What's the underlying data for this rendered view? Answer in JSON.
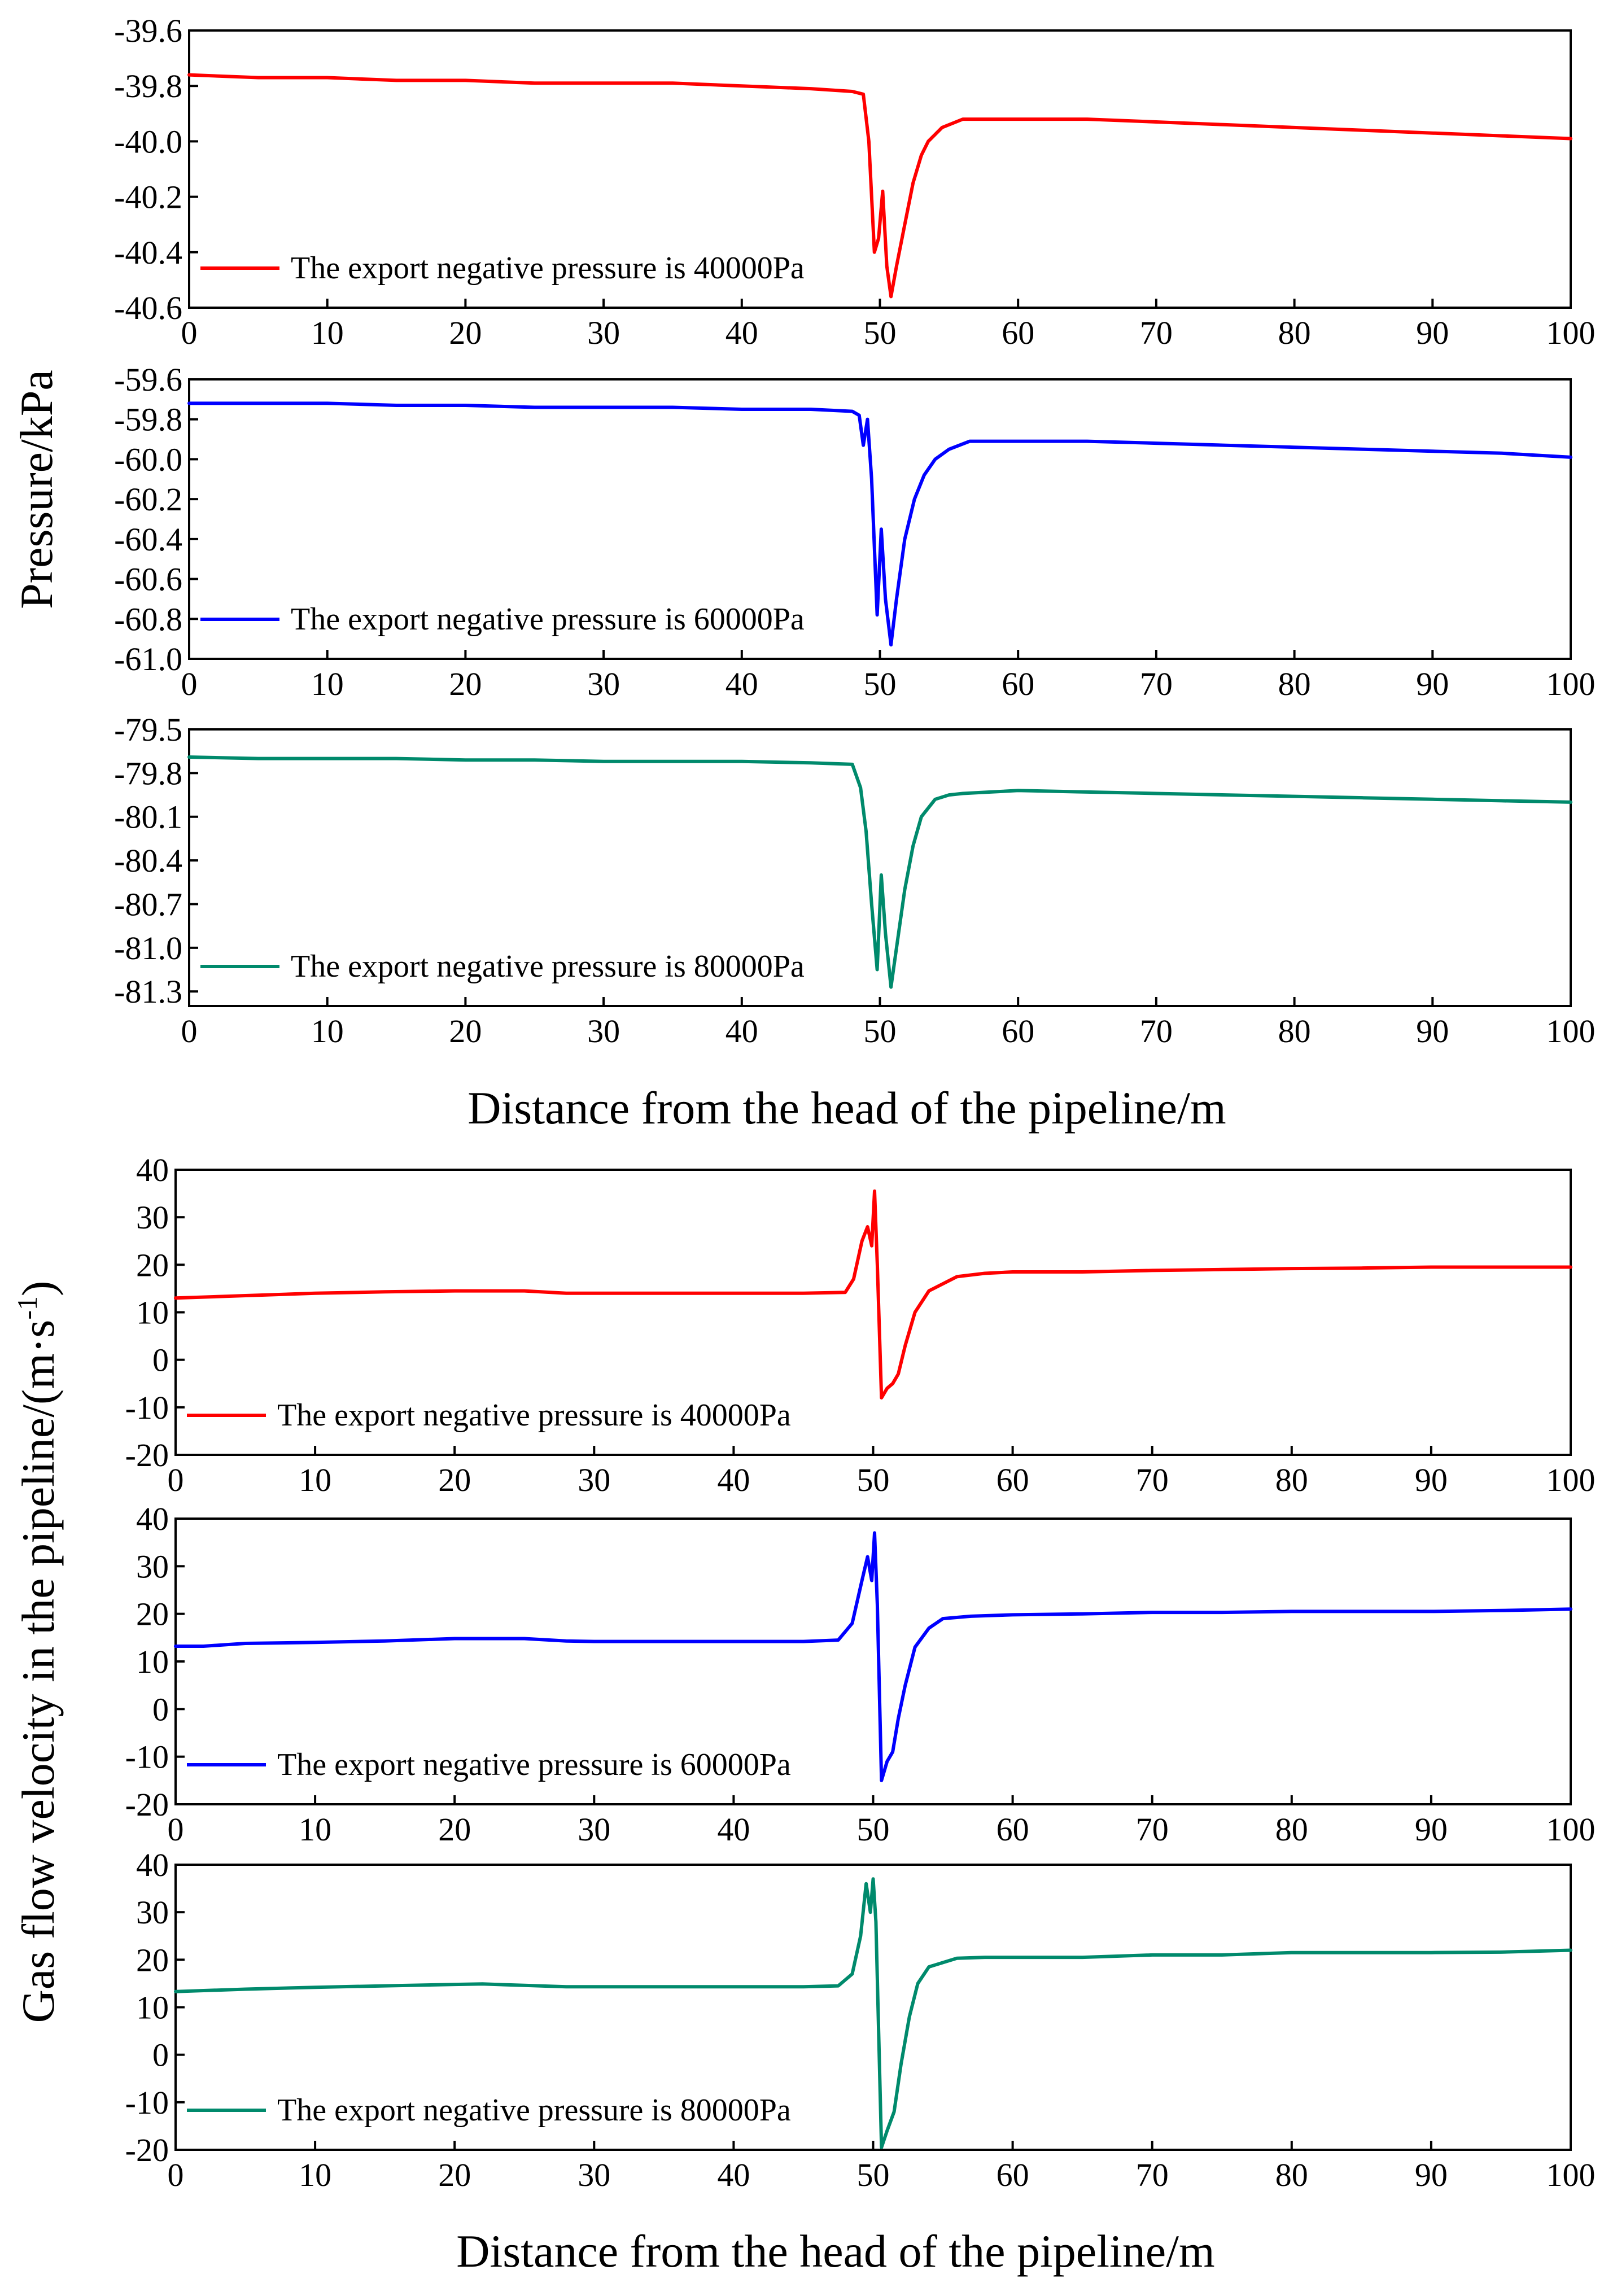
{
  "colors": {
    "p40000": "#ff0000",
    "p60000": "#0000ff",
    "p80000": "#008a6c"
  },
  "titles": {
    "pressure_y": "Pressure/kPa",
    "pressure_x": "Distance from the head of the pipeline/m",
    "velocity_y": "Gas flow velocity in the pipeline/(m·s",
    "velocity_y_sup": "-1",
    "velocity_y_end": ")",
    "velocity_x": "Distance from the head of the pipeline/m"
  },
  "chart_data": [
    {
      "type": "line",
      "group": "pressure",
      "name": "pressure-40000",
      "title": "",
      "xlabel": "Distance from the head of the pipeline/m",
      "ylabel": "Pressure/kPa",
      "xlim": [
        0,
        100
      ],
      "ylim": [
        -40.6,
        -39.6
      ],
      "xticks": [
        0,
        10,
        20,
        30,
        40,
        50,
        60,
        70,
        80,
        90,
        100
      ],
      "xtick_labels": [
        "0",
        "10",
        "20",
        "30",
        "40",
        "50",
        "60",
        "70",
        "80",
        "90",
        "100"
      ],
      "yticks": [
        -39.6,
        -39.8,
        -40.0,
        -40.2,
        -40.4,
        -40.6
      ],
      "ytick_labels": [
        "-39.6",
        "-39.8",
        "-40.0",
        "-40.2",
        "-40.4",
        "-40.6"
      ],
      "legend": "lower-left",
      "series": [
        {
          "name": "The export negative pressure is 40000Pa",
          "color": "#ff0000",
          "x": [
            0,
            5,
            10,
            15,
            20,
            25,
            30,
            35,
            40,
            45,
            48,
            48.8,
            49.2,
            49.6,
            49.9,
            50.2,
            50.5,
            50.8,
            51.2,
            51.8,
            52.4,
            53,
            53.5,
            54.5,
            56,
            60,
            65,
            70,
            75,
            80,
            85,
            90,
            95,
            100
          ],
          "y": [
            -39.76,
            -39.77,
            -39.77,
            -39.78,
            -39.78,
            -39.79,
            -39.79,
            -39.79,
            -39.8,
            -39.81,
            -39.82,
            -39.83,
            -40.0,
            -40.4,
            -40.35,
            -40.18,
            -40.45,
            -40.56,
            -40.45,
            -40.3,
            -40.15,
            -40.05,
            -40.0,
            -39.95,
            -39.92,
            -39.92,
            -39.92,
            -39.93,
            -39.94,
            -39.95,
            -39.96,
            -39.97,
            -39.98,
            -39.99
          ]
        }
      ]
    },
    {
      "type": "line",
      "group": "pressure",
      "name": "pressure-60000",
      "title": "",
      "xlabel": "Distance from the head of the pipeline/m",
      "ylabel": "Pressure/kPa",
      "xlim": [
        0,
        100
      ],
      "ylim": [
        -61.0,
        -59.6
      ],
      "xticks": [
        0,
        10,
        20,
        30,
        40,
        50,
        60,
        70,
        80,
        90,
        100
      ],
      "xtick_labels": [
        "0",
        "10",
        "20",
        "30",
        "40",
        "50",
        "60",
        "70",
        "80",
        "90",
        "100"
      ],
      "yticks": [
        -59.6,
        -59.8,
        -60.0,
        -60.2,
        -60.4,
        -60.6,
        -60.8,
        -61.0
      ],
      "ytick_labels": [
        "-59.6",
        "-59.8",
        "-60.0",
        "-60.2",
        "-60.4",
        "-60.6",
        "-60.8",
        "-61.0"
      ],
      "legend": "lower-left",
      "series": [
        {
          "name": "The export negative pressure is 60000Pa",
          "color": "#0000ff",
          "x": [
            0,
            5,
            10,
            15,
            20,
            25,
            30,
            35,
            40,
            45,
            48,
            48.5,
            48.8,
            49.1,
            49.4,
            49.8,
            50.1,
            50.4,
            50.8,
            51.2,
            51.8,
            52.5,
            53.2,
            54,
            55,
            56.5,
            60,
            65,
            70,
            75,
            80,
            85,
            90,
            95,
            100
          ],
          "y": [
            -59.72,
            -59.72,
            -59.72,
            -59.73,
            -59.73,
            -59.74,
            -59.74,
            -59.74,
            -59.75,
            -59.75,
            -59.76,
            -59.78,
            -59.93,
            -59.8,
            -60.1,
            -60.78,
            -60.35,
            -60.7,
            -60.93,
            -60.7,
            -60.4,
            -60.2,
            -60.08,
            -60.0,
            -59.95,
            -59.91,
            -59.91,
            -59.91,
            -59.92,
            -59.93,
            -59.94,
            -59.95,
            -59.96,
            -59.97,
            -59.99
          ]
        }
      ]
    },
    {
      "type": "line",
      "group": "pressure",
      "name": "pressure-80000",
      "title": "",
      "xlabel": "Distance from the head of the pipeline/m",
      "ylabel": "Pressure/kPa",
      "xlim": [
        0,
        100
      ],
      "ylim": [
        -81.4,
        -79.5
      ],
      "xticks": [
        0,
        10,
        20,
        30,
        40,
        50,
        60,
        70,
        80,
        90,
        100
      ],
      "xtick_labels": [
        "0",
        "10",
        "20",
        "30",
        "40",
        "50",
        "60",
        "70",
        "80",
        "90",
        "100"
      ],
      "yticks": [
        -79.5,
        -79.8,
        -80.1,
        -80.4,
        -80.7,
        -81.0,
        -81.3
      ],
      "ytick_labels": [
        "-79.5",
        "-79.8",
        "-80.1",
        "-80.4",
        "-80.7",
        "-81.0",
        "-81.3"
      ],
      "legend": "lower-left",
      "series": [
        {
          "name": "The export negative pressure is 80000Pa",
          "color": "#008a6c",
          "x": [
            0,
            5,
            10,
            15,
            20,
            25,
            30,
            35,
            40,
            45,
            48,
            48.6,
            49,
            49.4,
            49.8,
            50.1,
            50.4,
            50.8,
            51.2,
            51.8,
            52.4,
            53,
            54,
            55,
            56,
            58,
            60,
            65,
            70,
            75,
            80,
            85,
            90,
            95,
            100
          ],
          "y": [
            -79.69,
            -79.7,
            -79.7,
            -79.7,
            -79.71,
            -79.71,
            -79.72,
            -79.72,
            -79.72,
            -79.73,
            -79.74,
            -79.9,
            -80.2,
            -80.7,
            -81.15,
            -80.5,
            -80.9,
            -81.27,
            -81.0,
            -80.6,
            -80.3,
            -80.1,
            -79.98,
            -79.95,
            -79.94,
            -79.93,
            -79.92,
            -79.93,
            -79.94,
            -79.95,
            -79.96,
            -79.97,
            -79.98,
            -79.99,
            -80.0
          ]
        }
      ]
    },
    {
      "type": "line",
      "group": "velocity",
      "name": "velocity-40000",
      "title": "",
      "xlabel": "Distance from the head of the pipeline/m",
      "ylabel": "Gas flow velocity in the pipeline/(m·s-1)",
      "xlim": [
        0,
        100
      ],
      "ylim": [
        -20,
        40
      ],
      "xticks": [
        0,
        10,
        20,
        30,
        40,
        50,
        60,
        70,
        80,
        90,
        100
      ],
      "xtick_labels": [
        "0",
        "10",
        "20",
        "30",
        "40",
        "50",
        "60",
        "70",
        "80",
        "90",
        "100"
      ],
      "yticks": [
        40,
        30,
        20,
        10,
        0,
        -10,
        -20
      ],
      "ytick_labels": [
        "40",
        "30",
        "20",
        "10",
        "0",
        "-10",
        "-20"
      ],
      "legend": "lower-left",
      "series": [
        {
          "name": "The export negative pressure is 40000Pa",
          "color": "#ff0000",
          "x": [
            0,
            5,
            10,
            15,
            20,
            25,
            28,
            30,
            35,
            40,
            45,
            48,
            48.6,
            49.2,
            49.6,
            49.9,
            50.1,
            50.3,
            50.6,
            51,
            51.4,
            51.8,
            52.3,
            53,
            54,
            56,
            58,
            60,
            65,
            70,
            75,
            80,
            85,
            90,
            95,
            100
          ],
          "y": [
            13,
            13.5,
            14,
            14.3,
            14.5,
            14.5,
            14,
            14,
            14,
            14,
            14,
            14.2,
            17,
            25,
            28,
            24,
            35.5,
            20,
            -8,
            -6,
            -5,
            -3,
            3,
            10,
            14.5,
            17.5,
            18.2,
            18.5,
            18.5,
            18.8,
            19,
            19.2,
            19.3,
            19.5,
            19.5,
            19.5
          ]
        }
      ]
    },
    {
      "type": "line",
      "group": "velocity",
      "name": "velocity-60000",
      "title": "",
      "xlabel": "Distance from the head of the pipeline/m",
      "ylabel": "Gas flow velocity in the pipeline/(m·s-1)",
      "xlim": [
        0,
        100
      ],
      "ylim": [
        -20,
        40
      ],
      "xticks": [
        0,
        10,
        20,
        30,
        40,
        50,
        60,
        70,
        80,
        90,
        100
      ],
      "xtick_labels": [
        "0",
        "10",
        "20",
        "30",
        "40",
        "50",
        "60",
        "70",
        "80",
        "90",
        "100"
      ],
      "yticks": [
        40,
        30,
        20,
        10,
        0,
        -10,
        -20
      ],
      "ytick_labels": [
        "40",
        "30",
        "20",
        "10",
        "0",
        "-10",
        "-20"
      ],
      "legend": "lower-left",
      "series": [
        {
          "name": "The export negative pressure is 60000Pa",
          "color": "#0000ff",
          "x": [
            0,
            2,
            5,
            10,
            15,
            20,
            25,
            28,
            30,
            35,
            40,
            45,
            47.5,
            48.5,
            49.2,
            49.6,
            49.9,
            50.1,
            50.3,
            50.6,
            51,
            51.4,
            51.8,
            52.3,
            53,
            54,
            55,
            57,
            60,
            65,
            70,
            75,
            80,
            85,
            90,
            95,
            100
          ],
          "y": [
            13.2,
            13.2,
            13.8,
            14,
            14.3,
            14.8,
            14.8,
            14.3,
            14.2,
            14.2,
            14.2,
            14.2,
            14.5,
            18,
            27,
            32,
            27,
            37,
            22,
            -15,
            -11,
            -9,
            -2,
            5,
            13,
            17,
            19,
            19.5,
            19.8,
            20,
            20.3,
            20.3,
            20.5,
            20.5,
            20.5,
            20.7,
            21
          ]
        }
      ]
    },
    {
      "type": "line",
      "group": "velocity",
      "name": "velocity-80000",
      "title": "",
      "xlabel": "Distance from the head of the pipeline/m",
      "ylabel": "Gas flow velocity in the pipeline/(m·s-1)",
      "xlim": [
        0,
        100
      ],
      "ylim": [
        -20,
        40
      ],
      "xticks": [
        0,
        10,
        20,
        30,
        40,
        50,
        60,
        70,
        80,
        90,
        100
      ],
      "xtick_labels": [
        "0",
        "10",
        "20",
        "30",
        "40",
        "50",
        "60",
        "70",
        "80",
        "90",
        "100"
      ],
      "yticks": [
        40,
        30,
        20,
        10,
        0,
        -10,
        -20
      ],
      "ytick_labels": [
        "40",
        "30",
        "20",
        "10",
        "0",
        "-10",
        "-20"
      ],
      "legend": "lower-left",
      "series": [
        {
          "name": "The export negative pressure is 80000Pa",
          "color": "#008a6c",
          "x": [
            0,
            5,
            10,
            15,
            20,
            22,
            25,
            28,
            30,
            35,
            40,
            45,
            47.5,
            48.5,
            49.1,
            49.5,
            49.8,
            50,
            50.2,
            50.6,
            51,
            51.5,
            52,
            52.6,
            53.2,
            54,
            56,
            58,
            60,
            65,
            70,
            75,
            80,
            85,
            90,
            95,
            100
          ],
          "y": [
            13.3,
            13.8,
            14.2,
            14.5,
            14.8,
            14.9,
            14.6,
            14.3,
            14.3,
            14.3,
            14.3,
            14.3,
            14.5,
            17,
            25,
            36,
            30,
            37,
            28,
            -19.5,
            -16,
            -12,
            -2,
            8,
            15,
            18.5,
            20.3,
            20.5,
            20.5,
            20.5,
            21,
            21,
            21.5,
            21.5,
            21.5,
            21.6,
            22
          ]
        }
      ]
    }
  ]
}
